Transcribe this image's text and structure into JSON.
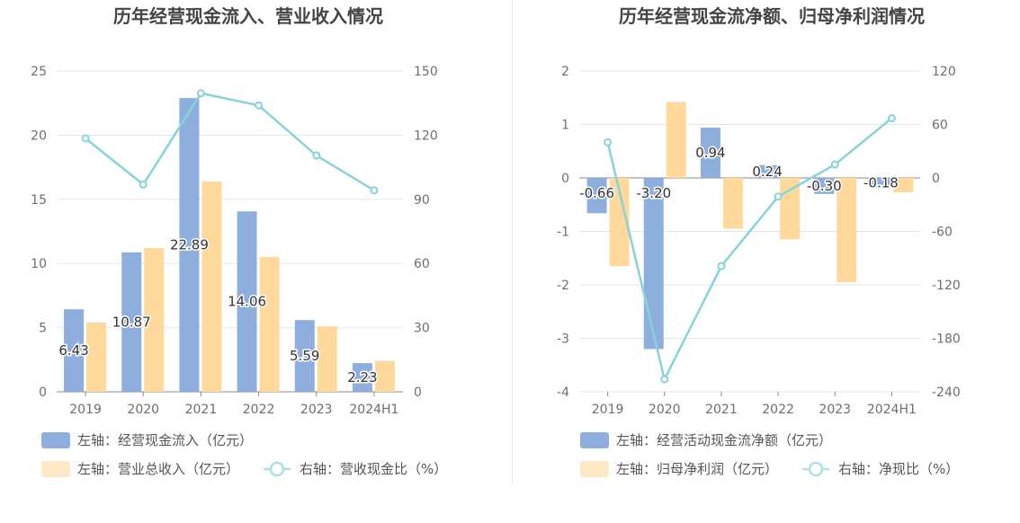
{
  "chart_data": [
    {
      "type": "bar",
      "title": "历年经营现金流入、营业收入情况",
      "categories": [
        "2019",
        "2020",
        "2021",
        "2022",
        "2023",
        "2024H1"
      ],
      "left_axis": {
        "ticks": [
          "0",
          "5",
          "10",
          "15",
          "20",
          "25"
        ],
        "ylim": [
          0,
          25
        ]
      },
      "right_axis": {
        "ticks": [
          "0",
          "30",
          "60",
          "90",
          "120",
          "150"
        ],
        "ylim": [
          0,
          150
        ]
      },
      "series": [
        {
          "name": "左轴：经营现金流入（亿元）",
          "kind": "bar",
          "axis": "left",
          "color": "#8eaede",
          "values": [
            6.43,
            10.87,
            22.89,
            14.06,
            5.59,
            2.23
          ],
          "labels": [
            "6.43",
            "10.87",
            "22.89",
            "14.06",
            "5.59",
            "2.23"
          ]
        },
        {
          "name": "左轴：营业总收入（亿元）",
          "kind": "bar",
          "axis": "left",
          "color": "#ffd99b",
          "values": [
            5.4,
            11.2,
            16.4,
            10.5,
            5.1,
            2.4
          ]
        },
        {
          "name": "右轴：营收现金比（%）",
          "kind": "line",
          "axis": "right",
          "color": "#86d3d8",
          "values": [
            118.5,
            96.9,
            139.6,
            133.9,
            110.5,
            94.2
          ]
        }
      ],
      "legend": [
        {
          "label": "左轴：经营现金流入（亿元）",
          "swatch": "bar",
          "color": "#8eaede"
        },
        {
          "label": "左轴：营业总收入（亿元）",
          "swatch": "bar",
          "color": "#ffe8c6"
        },
        {
          "label": "右轴：营收现金比（%）",
          "swatch": "line",
          "color": "#a9e2e6"
        }
      ]
    },
    {
      "type": "bar",
      "title": "历年经营现金流净额、归母净利润情况",
      "categories": [
        "2019",
        "2020",
        "2021",
        "2022",
        "2023",
        "2024H1"
      ],
      "left_axis": {
        "ticks": [
          "-4",
          "-3",
          "-2",
          "-1",
          "0",
          "1",
          "2"
        ],
        "ylim": [
          -4,
          2
        ]
      },
      "right_axis": {
        "ticks": [
          "-240",
          "-180",
          "-120",
          "-60",
          "0",
          "60",
          "120"
        ],
        "ylim": [
          -240,
          120
        ]
      },
      "series": [
        {
          "name": "左轴：经营活动现金流净额（亿元）",
          "kind": "bar",
          "axis": "left",
          "color": "#8eaede",
          "values": [
            -0.66,
            -3.2,
            0.94,
            0.24,
            -0.3,
            -0.18
          ],
          "labels": [
            "-0.66",
            "-3.20",
            "0.94",
            "0.24",
            "-0.30",
            "-0.18"
          ]
        },
        {
          "name": "左轴：归母净利润（亿元）",
          "kind": "bar",
          "axis": "left",
          "color": "#ffd99b",
          "values": [
            -1.65,
            1.42,
            -0.95,
            -1.15,
            -1.95,
            -0.27
          ]
        },
        {
          "name": "右轴：净现比（%）",
          "kind": "line",
          "axis": "right",
          "color": "#86d3d8",
          "values": [
            40,
            -226,
            -99,
            -21,
            15,
            67
          ]
        }
      ],
      "legend": [
        {
          "label": "左轴：经营活动现金流净额（亿元）",
          "swatch": "bar",
          "color": "#8eaede"
        },
        {
          "label": "左轴：归母净利润（亿元）",
          "swatch": "bar",
          "color": "#ffe8c6"
        },
        {
          "label": "右轴：净现比（%）",
          "swatch": "line",
          "color": "#a9e2e6"
        }
      ]
    }
  ]
}
